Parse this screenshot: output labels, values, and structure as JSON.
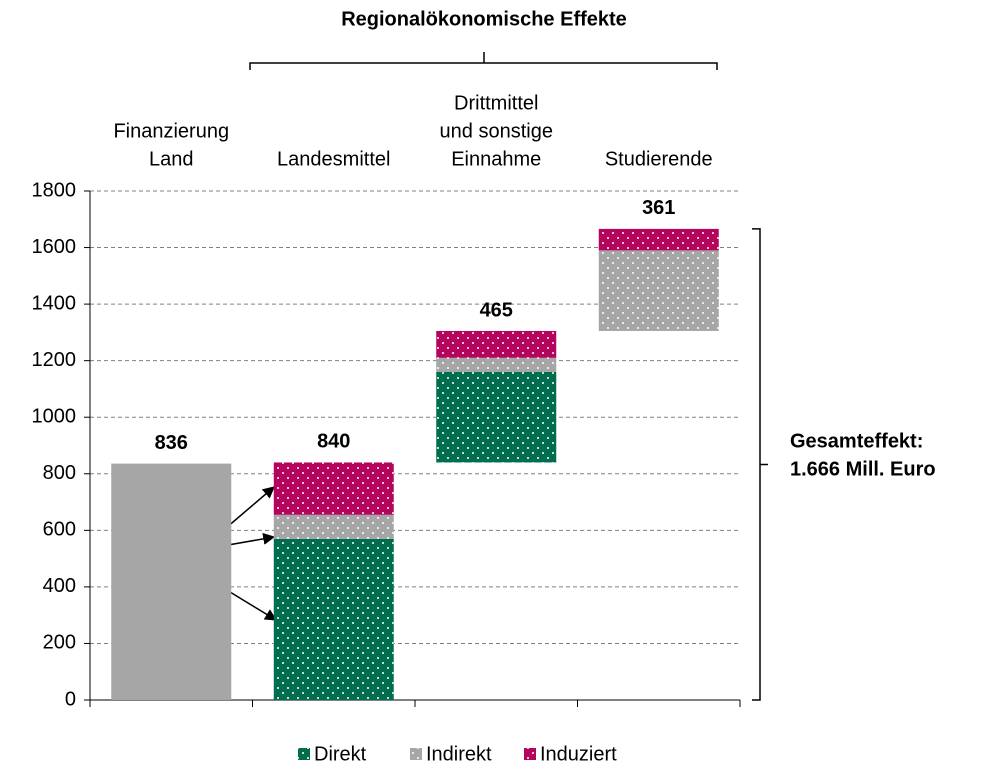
{
  "chart_data": {
    "type": "waterfall",
    "title": "Regionalökonomische Effekte",
    "categories": [
      [
        "Finanzierung",
        "Land"
      ],
      [
        "Landesmittel"
      ],
      [
        "Drittmittel",
        "und sonstige",
        "Einnahme"
      ],
      [
        "Studierende"
      ]
    ],
    "totals": [
      836,
      840,
      465,
      361
    ],
    "funding_color": "#a6a6a6",
    "series": [
      {
        "name": "Direkt",
        "color": "#006e4e",
        "values": [
          null,
          570,
          320,
          0
        ]
      },
      {
        "name": "Indirekt",
        "color": "#a6a6a6",
        "values": [
          null,
          85,
          50,
          285
        ]
      },
      {
        "name": "Induziert",
        "color": "#b4045c",
        "values": [
          null,
          185,
          95,
          76
        ]
      }
    ],
    "annotation": [
      "Gesamteffekt:",
      "1.666 Mill. Euro"
    ],
    "ylim": [
      0,
      1800
    ],
    "yticks": [
      0,
      200,
      400,
      600,
      800,
      1000,
      1200,
      1400,
      1600,
      1800
    ],
    "grid": true
  }
}
